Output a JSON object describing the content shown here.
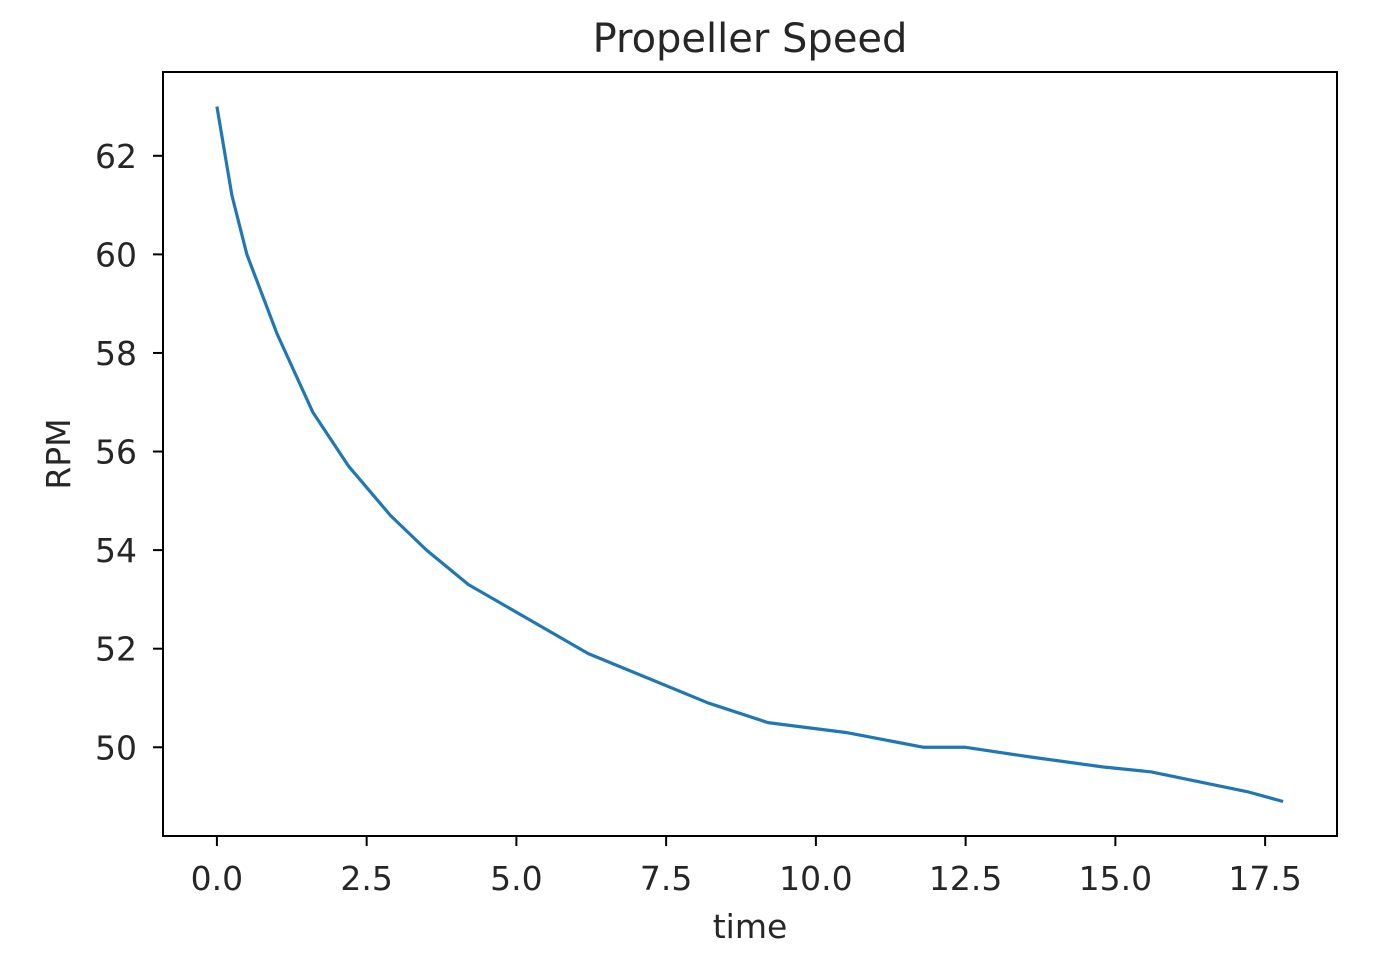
{
  "chart_data": {
    "type": "line",
    "title": "Propeller Speed",
    "xlabel": "time",
    "ylabel": "RPM",
    "xlim": [
      -0.9,
      18.7
    ],
    "ylim": [
      48.2,
      63.7
    ],
    "xticks": [
      0.0,
      2.5,
      5.0,
      7.5,
      10.0,
      12.5,
      15.0,
      17.5
    ],
    "xtick_labels": [
      "0.0",
      "2.5",
      "5.0",
      "7.5",
      "10.0",
      "12.5",
      "15.0",
      "17.5"
    ],
    "yticks": [
      50,
      52,
      54,
      56,
      58,
      60,
      62
    ],
    "ytick_labels": [
      "50",
      "52",
      "54",
      "56",
      "58",
      "60",
      "62"
    ],
    "grid": false,
    "legend": "none",
    "series": [
      {
        "color": "#1f77b4",
        "x": [
          0.0,
          0.25,
          0.5,
          1.0,
          1.6,
          2.2,
          2.9,
          3.5,
          4.2,
          5.2,
          6.2,
          7.2,
          8.2,
          9.2,
          10.5,
          11.8,
          12.5,
          13.6,
          14.8,
          15.6,
          16.4,
          17.2,
          17.8
        ],
        "y": [
          63.0,
          61.2,
          60.0,
          58.4,
          56.8,
          55.7,
          54.7,
          54.0,
          53.3,
          52.6,
          51.9,
          51.4,
          50.9,
          50.5,
          50.3,
          50.0,
          50.0,
          49.8,
          49.6,
          49.5,
          49.3,
          49.1,
          48.9
        ]
      }
    ]
  }
}
